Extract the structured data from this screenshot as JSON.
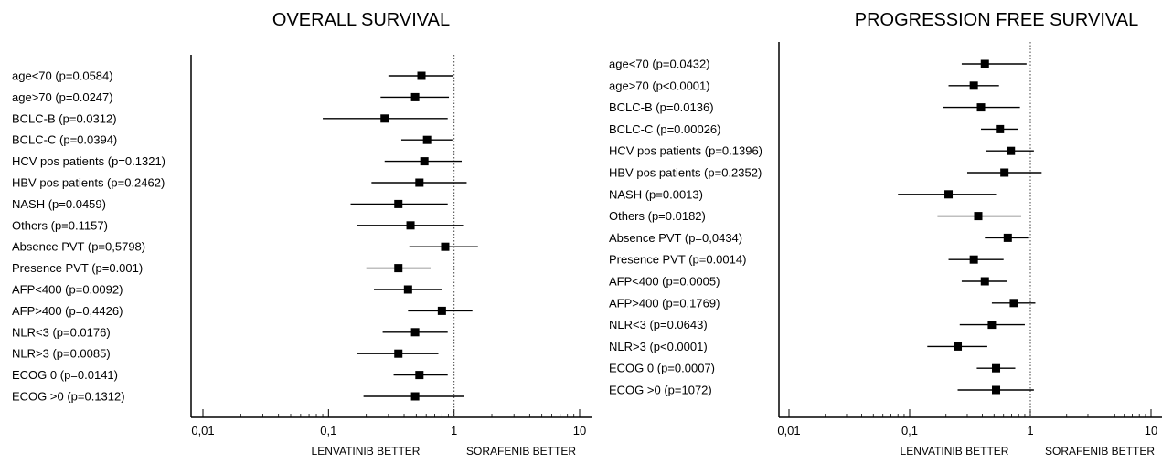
{
  "chart_data": [
    {
      "type": "forest",
      "title": "OVERALL SURVIVAL",
      "x_scale": "log",
      "xlim": [
        0.01,
        10
      ],
      "reference_line": 1,
      "x_ticks": [
        "0,01",
        "0,1",
        "1",
        "10"
      ],
      "xlabel_left": "LENVATINIB BETTER",
      "xlabel_right": "SORAFENIB BETTER",
      "rows": [
        {
          "label": "age<70 (p=0.0584)",
          "estimate": 0.55,
          "ci": [
            0.3,
            0.98
          ]
        },
        {
          "label": "age>70 (p=0.0247)",
          "estimate": 0.49,
          "ci": [
            0.26,
            0.91
          ]
        },
        {
          "label": "BCLC-B (p=0.0312)",
          "estimate": 0.28,
          "ci": [
            0.09,
            0.89
          ]
        },
        {
          "label": "BCLC-C (p=0.0394)",
          "estimate": 0.61,
          "ci": [
            0.38,
            0.97
          ]
        },
        {
          "label": "HCV pos patients (p=0.1321)",
          "estimate": 0.58,
          "ci": [
            0.28,
            1.15
          ]
        },
        {
          "label": "HBV pos patients (p=0.2462)",
          "estimate": 0.53,
          "ci": [
            0.22,
            1.26
          ]
        },
        {
          "label": "NASH (p=0.0459)",
          "estimate": 0.36,
          "ci": [
            0.15,
            0.89
          ]
        },
        {
          "label": "Others (p=0.1157)",
          "estimate": 0.45,
          "ci": [
            0.17,
            1.18
          ]
        },
        {
          "label": "Absence PVT (p=0,5798)",
          "estimate": 0.85,
          "ci": [
            0.44,
            1.55
          ]
        },
        {
          "label": "Presence PVT (p=0.001)",
          "estimate": 0.36,
          "ci": [
            0.2,
            0.65
          ]
        },
        {
          "label": "AFP<400 (p=0.0092)",
          "estimate": 0.43,
          "ci": [
            0.23,
            0.8
          ]
        },
        {
          "label": "AFP>400 (p=0,4426)",
          "estimate": 0.8,
          "ci": [
            0.43,
            1.4
          ]
        },
        {
          "label": "NLR<3 (p=0.0176)",
          "estimate": 0.49,
          "ci": [
            0.27,
            0.89
          ]
        },
        {
          "label": "NLR>3 (p=0.0085)",
          "estimate": 0.36,
          "ci": [
            0.17,
            0.75
          ]
        },
        {
          "label": "ECOG 0 (p=0.0141)",
          "estimate": 0.53,
          "ci": [
            0.33,
            0.89
          ]
        },
        {
          "label": "ECOG >0 (p=0.1312)",
          "estimate": 0.49,
          "ci": [
            0.19,
            1.2
          ]
        }
      ]
    },
    {
      "type": "forest",
      "title": "PROGRESSION FREE SURVIVAL",
      "x_scale": "log",
      "xlim": [
        0.01,
        10
      ],
      "reference_line": 1,
      "x_ticks": [
        "0,01",
        "0,1",
        "1",
        "10"
      ],
      "xlabel_left": "LENVATINIB BETTER",
      "xlabel_right": "SORAFENIB BETTER",
      "rows": [
        {
          "label": "age<70 (p=0.0432)",
          "estimate": 0.42,
          "ci": [
            0.27,
            0.93
          ]
        },
        {
          "label": "age>70 (p<0.0001)",
          "estimate": 0.34,
          "ci": [
            0.21,
            0.55
          ]
        },
        {
          "label": "BCLC-B (p=0.0136)",
          "estimate": 0.39,
          "ci": [
            0.19,
            0.82
          ]
        },
        {
          "label": "BCLC-C (p=0.00026)",
          "estimate": 0.56,
          "ci": [
            0.39,
            0.79
          ]
        },
        {
          "label": "HCV pos patients (p=0.1396)",
          "estimate": 0.69,
          "ci": [
            0.43,
            1.07
          ]
        },
        {
          "label": "HBV pos patients (p=0.2352)",
          "estimate": 0.61,
          "ci": [
            0.3,
            1.24
          ]
        },
        {
          "label": "NASH (p=0.0013)",
          "estimate": 0.21,
          "ci": [
            0.08,
            0.52
          ]
        },
        {
          "label": "Others (p=0.0182)",
          "estimate": 0.37,
          "ci": [
            0.17,
            0.84
          ]
        },
        {
          "label": "Absence PVT (p=0,0434)",
          "estimate": 0.65,
          "ci": [
            0.42,
            0.96
          ]
        },
        {
          "label": "Presence PVT (p=0.0014)",
          "estimate": 0.34,
          "ci": [
            0.21,
            0.6
          ]
        },
        {
          "label": "AFP<400 (p=0.0005)",
          "estimate": 0.42,
          "ci": [
            0.27,
            0.64
          ]
        },
        {
          "label": "AFP>400 (p=0,1769)",
          "estimate": 0.73,
          "ci": [
            0.48,
            1.1
          ]
        },
        {
          "label": "NLR<3 (p=0.0643)",
          "estimate": 0.48,
          "ci": [
            0.26,
            0.9
          ]
        },
        {
          "label": "NLR>3 (p<0.0001)",
          "estimate": 0.25,
          "ci": [
            0.14,
            0.44
          ]
        },
        {
          "label": "ECOG 0 (p=0.0007)",
          "estimate": 0.52,
          "ci": [
            0.36,
            0.75
          ]
        },
        {
          "label": "ECOG >0 (p=1072)",
          "estimate": 0.52,
          "ci": [
            0.25,
            1.07
          ]
        }
      ]
    }
  ]
}
